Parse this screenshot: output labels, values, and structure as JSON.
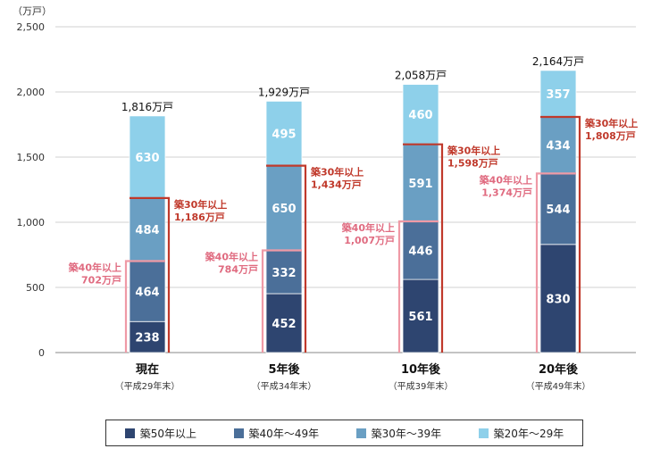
{
  "chart_data": {
    "type": "bar",
    "stacked": true,
    "unit_label": "（万戸）",
    "ylim": [
      0,
      2500
    ],
    "yticks": [
      0,
      500,
      1000,
      1500,
      2000,
      2500
    ],
    "ytick_labels": [
      "0",
      "500",
      "1,000",
      "1,500",
      "2,000",
      "2,500"
    ],
    "grid": "horizontal",
    "categories": [
      "現在",
      "5年後",
      "10年後",
      "20年後"
    ],
    "category_sublabels": [
      "（平成29年末）",
      "（平成34年末）",
      "（平成39年末）",
      "（平成49年末）"
    ],
    "series": [
      {
        "name": "築50年以上",
        "color": "#2e4570",
        "values": [
          238,
          452,
          561,
          830
        ]
      },
      {
        "name": "築40年〜49年",
        "color": "#4b6f99",
        "values": [
          464,
          332,
          446,
          544
        ]
      },
      {
        "name": "築30年〜39年",
        "color": "#6a9fc3",
        "values": [
          484,
          650,
          591,
          434
        ]
      },
      {
        "name": "築20年〜29年",
        "color": "#8ed0ea",
        "values": [
          630,
          495,
          460,
          357
        ]
      }
    ],
    "totals": [
      "1,816万戸",
      "1,929万戸",
      "2,058万戸",
      "2,164万戸"
    ],
    "annotations_40": [
      {
        "line1": "築40年以上",
        "line2": "702万戸",
        "value": 702
      },
      {
        "line1": "築40年以上",
        "line2": "784万戸",
        "value": 784
      },
      {
        "line1": "築40年以上",
        "line2": "1,007万戸",
        "value": 1007
      },
      {
        "line1": "築40年以上",
        "line2": "1,374万戸",
        "value": 1374
      }
    ],
    "annotations_30": [
      {
        "line1": "築30年以上",
        "line2": "1,186万戸",
        "value": 1186
      },
      {
        "line1": "築30年以上",
        "line2": "1,434万戸",
        "value": 1434
      },
      {
        "line1": "築30年以上",
        "line2": "1,598万戸",
        "value": 1598
      },
      {
        "line1": "築30年以上",
        "line2": "1,808万戸",
        "value": 1808
      }
    ],
    "colors": {
      "bracket40": "#ef9aa6",
      "bracket30": "#c0392b"
    }
  }
}
